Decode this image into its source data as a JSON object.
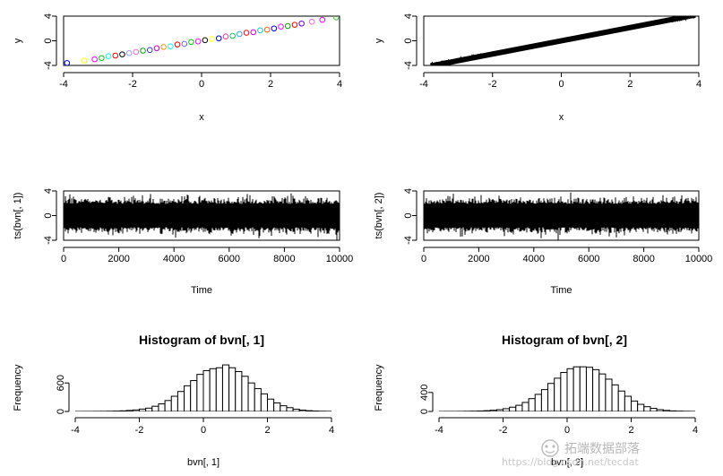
{
  "chart_data": [
    {
      "id": "p1",
      "type": "scatter",
      "title": "",
      "xlabel": "x",
      "ylabel": "y",
      "xlim": [
        -4,
        4
      ],
      "ylim": [
        -4,
        4
      ],
      "xticks": [
        -4,
        -2,
        0,
        2,
        4
      ],
      "yticks": [
        -4,
        0,
        4
      ],
      "points_hint": "colored open circles along y = x",
      "x": [
        -3.9,
        -3.4,
        -3.1,
        -2.9,
        -2.7,
        -2.5,
        -2.3,
        -2.1,
        -1.9,
        -1.7,
        -1.5,
        -1.3,
        -1.1,
        -0.9,
        -0.7,
        -0.5,
        -0.3,
        -0.1,
        0.1,
        0.3,
        0.5,
        0.7,
        0.9,
        1.1,
        1.3,
        1.5,
        1.7,
        1.9,
        2.1,
        2.3,
        2.5,
        2.7,
        2.9,
        3.2,
        3.5,
        3.9
      ],
      "y": [
        -3.6,
        -3.2,
        -3.0,
        -2.8,
        -2.5,
        -2.4,
        -2.2,
        -2.0,
        -1.8,
        -1.6,
        -1.5,
        -1.2,
        -1.0,
        -0.9,
        -0.6,
        -0.5,
        -0.2,
        -0.1,
        0.1,
        0.3,
        0.4,
        0.7,
        0.8,
        1.1,
        1.3,
        1.4,
        1.7,
        1.8,
        2.0,
        2.3,
        2.4,
        2.6,
        2.8,
        3.1,
        3.4,
        3.8
      ],
      "colors": [
        "#0000ff",
        "#ffff00",
        "#ff00ff",
        "#00cc00",
        "#00ffff",
        "#ff0000",
        "#000000",
        "#9999ff",
        "#ff66cc",
        "#00aa00",
        "#3333ff",
        "#cc00cc",
        "#ff9900",
        "#00ffff",
        "#ff0000",
        "#6666ff",
        "#00cc00",
        "#ff00ff",
        "#000000",
        "#ffff00",
        "#0000ff",
        "#ff3399",
        "#00cc66",
        "#3399ff",
        "#ff0000",
        "#cc00ff",
        "#00cccc",
        "#ff6600",
        "#0000ff",
        "#ff00ff",
        "#00aa00",
        "#ff0000",
        "#6600ff",
        "#ff66cc",
        "#ff00ff",
        "#33cc33"
      ]
    },
    {
      "id": "p2",
      "type": "line",
      "title": "",
      "xlabel": "x",
      "ylabel": "y",
      "xlim": [
        -4,
        4
      ],
      "ylim": [
        -4,
        4
      ],
      "xticks": [
        -4,
        -2,
        0,
        2,
        4
      ],
      "yticks": [
        -4,
        0,
        4
      ],
      "x_range": [
        -3.8,
        3.9
      ]
    },
    {
      "id": "p3",
      "type": "line",
      "title": "",
      "xlabel": "Time",
      "ylabel": "ts(bvn[, 1])",
      "xlim": [
        0,
        10000
      ],
      "ylim": [
        -4,
        4
      ],
      "xticks": [
        0,
        2000,
        4000,
        6000,
        8000,
        10000
      ],
      "yticks": [
        -4,
        0,
        4
      ],
      "n": 10000,
      "band": [
        -1.9,
        1.9
      ]
    },
    {
      "id": "p4",
      "type": "line",
      "title": "",
      "xlabel": "Time",
      "ylabel": "ts(bvn[, 2])",
      "xlim": [
        0,
        10000
      ],
      "ylim": [
        -4,
        4
      ],
      "xticks": [
        0,
        2000,
        4000,
        6000,
        8000,
        10000
      ],
      "yticks": [
        -4,
        0,
        4
      ],
      "n": 10000,
      "band": [
        -1.9,
        1.9
      ]
    },
    {
      "id": "p5",
      "type": "bar",
      "title": "Histogram of bvn[, 1]",
      "xlabel": "bvn[, 1]",
      "ylabel": "Frequency",
      "xlim": [
        -4,
        4
      ],
      "ylim": [
        0,
        1000
      ],
      "xticks": [
        -4,
        -2,
        0,
        2,
        4
      ],
      "yticks": [
        0,
        600
      ],
      "bin_start": -4.0,
      "bin_width": 0.2,
      "values": [
        0,
        1,
        1,
        2,
        3,
        5,
        8,
        13,
        21,
        32,
        50,
        70,
        110,
        160,
        230,
        320,
        420,
        540,
        650,
        780,
        860,
        900,
        920,
        980,
        920,
        840,
        740,
        600,
        480,
        370,
        260,
        180,
        120,
        80,
        48,
        28,
        16,
        9,
        5,
        3
      ]
    },
    {
      "id": "p6",
      "type": "bar",
      "title": "Histogram of bvn[, 2]",
      "xlabel": "bvn[, 2]",
      "ylabel": "Frequency",
      "xlim": [
        -4,
        4
      ],
      "ylim": [
        0,
        1000
      ],
      "xticks": [
        -4,
        -2,
        0,
        2,
        4
      ],
      "yticks": [
        0,
        400
      ],
      "bin_start": -4.0,
      "bin_width": 0.2,
      "values": [
        0,
        1,
        1,
        2,
        4,
        6,
        10,
        16,
        25,
        38,
        58,
        90,
        130,
        190,
        270,
        360,
        460,
        590,
        700,
        820,
        900,
        940,
        940,
        930,
        880,
        790,
        680,
        560,
        430,
        320,
        220,
        150,
        100,
        65,
        38,
        22,
        12,
        7,
        4,
        2
      ]
    }
  ],
  "watermark": {
    "brand_text": "拓端数据部落",
    "url_text": "https://blog.csdn.net/tecdat"
  }
}
